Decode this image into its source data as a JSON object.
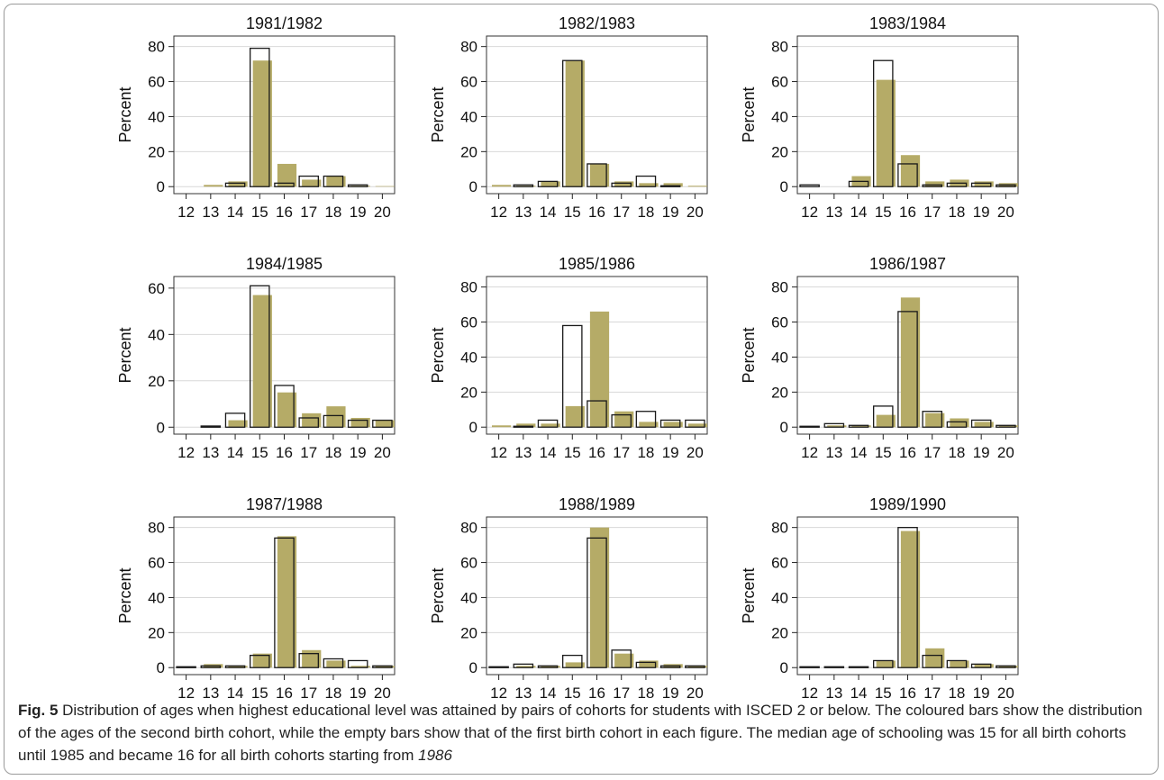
{
  "colors": {
    "second_cohort_fill": "#b5ab67",
    "first_cohort_outline": "#1a1a1a",
    "grid": "#d8d8d8",
    "frame": "#9a9a9a"
  },
  "chart_data": [
    {
      "type": "bar",
      "title": "1981/1982",
      "ylabel": "Percent",
      "categories": [
        "12",
        "13",
        "14",
        "15",
        "16",
        "17",
        "18",
        "19",
        "20"
      ],
      "yticks": [
        0,
        20,
        40,
        60,
        80
      ],
      "ylim": [
        -4,
        86
      ],
      "series": [
        {
          "values": [
            0,
            1,
            3,
            72,
            13,
            4,
            6,
            0.5,
            0.3
          ]
        },
        {
          "values": [
            0,
            0,
            2,
            79,
            2,
            6,
            6,
            1,
            0
          ]
        }
      ]
    },
    {
      "type": "bar",
      "title": "1982/1983",
      "ylabel": "Percent",
      "categories": [
        "12",
        "13",
        "14",
        "15",
        "16",
        "17",
        "18",
        "19",
        "20"
      ],
      "yticks": [
        0,
        20,
        40,
        60,
        80
      ],
      "ylim": [
        -4,
        86
      ],
      "series": [
        {
          "values": [
            1,
            0.5,
            3,
            72,
            13,
            3,
            2,
            2,
            0.5
          ]
        },
        {
          "values": [
            0,
            1,
            3,
            72,
            13,
            2,
            6,
            0.5,
            0
          ]
        }
      ]
    },
    {
      "type": "bar",
      "title": "1983/1984",
      "ylabel": "Percent",
      "categories": [
        "12",
        "13",
        "14",
        "15",
        "16",
        "17",
        "18",
        "19",
        "20"
      ],
      "yticks": [
        0,
        20,
        40,
        60,
        80
      ],
      "ylim": [
        -4,
        86
      ],
      "series": [
        {
          "values": [
            0,
            0,
            6,
            61,
            18,
            3,
            4,
            3,
            2
          ]
        },
        {
          "values": [
            1,
            0,
            3,
            72,
            13,
            1,
            2,
            2,
            1
          ]
        }
      ]
    },
    {
      "type": "bar",
      "title": "1984/1985",
      "ylabel": "Percent",
      "categories": [
        "12",
        "13",
        "14",
        "15",
        "16",
        "17",
        "18",
        "19",
        "20"
      ],
      "yticks": [
        0,
        20,
        40,
        60
      ],
      "ylim": [
        -3,
        65
      ],
      "series": [
        {
          "values": [
            0,
            0,
            3,
            57,
            15,
            6,
            9,
            4,
            3
          ]
        },
        {
          "values": [
            0,
            0.5,
            6,
            61,
            18,
            4,
            5,
            3,
            3
          ]
        }
      ]
    },
    {
      "type": "bar",
      "title": "1985/1986",
      "ylabel": "Percent",
      "categories": [
        "12",
        "13",
        "14",
        "15",
        "16",
        "17",
        "18",
        "19",
        "20"
      ],
      "yticks": [
        0,
        20,
        40,
        60,
        80
      ],
      "ylim": [
        -4,
        86
      ],
      "series": [
        {
          "values": [
            1,
            2,
            2,
            12,
            66,
            9,
            3,
            3,
            2
          ]
        },
        {
          "values": [
            0,
            0.5,
            4,
            58,
            15,
            7,
            9,
            4,
            4
          ]
        }
      ]
    },
    {
      "type": "bar",
      "title": "1986/1987",
      "ylabel": "Percent",
      "categories": [
        "12",
        "13",
        "14",
        "15",
        "16",
        "17",
        "18",
        "19",
        "20"
      ],
      "yticks": [
        0,
        20,
        40,
        60,
        80
      ],
      "ylim": [
        -4,
        86
      ],
      "series": [
        {
          "values": [
            0,
            1,
            1,
            7,
            74,
            8,
            5,
            3,
            1
          ]
        },
        {
          "values": [
            0.5,
            2,
            1,
            12,
            66,
            9,
            3,
            4,
            1
          ]
        }
      ]
    },
    {
      "type": "bar",
      "title": "1987/1988",
      "ylabel": "Percent",
      "categories": [
        "12",
        "13",
        "14",
        "15",
        "16",
        "17",
        "18",
        "19",
        "20"
      ],
      "yticks": [
        0,
        20,
        40,
        60,
        80
      ],
      "ylim": [
        -4,
        86
      ],
      "series": [
        {
          "values": [
            0,
            2,
            1,
            8,
            75,
            10,
            4,
            1,
            1
          ]
        },
        {
          "values": [
            0.5,
            1,
            1,
            7,
            74,
            8,
            5,
            4,
            1
          ]
        }
      ]
    },
    {
      "type": "bar",
      "title": "1988/1989",
      "ylabel": "Percent",
      "categories": [
        "12",
        "13",
        "14",
        "15",
        "16",
        "17",
        "18",
        "19",
        "20"
      ],
      "yticks": [
        0,
        20,
        40,
        60,
        80
      ],
      "ylim": [
        -4,
        86
      ],
      "series": [
        {
          "values": [
            0,
            1,
            1,
            3,
            80,
            8,
            4,
            2,
            1
          ]
        },
        {
          "values": [
            0.5,
            2,
            1,
            7,
            74,
            10,
            3,
            1,
            1
          ]
        }
      ]
    },
    {
      "type": "bar",
      "title": "1989/1990",
      "ylabel": "Percent",
      "categories": [
        "12",
        "13",
        "14",
        "15",
        "16",
        "17",
        "18",
        "19",
        "20"
      ],
      "yticks": [
        0,
        20,
        40,
        60,
        80
      ],
      "ylim": [
        -4,
        86
      ],
      "series": [
        {
          "values": [
            0,
            0,
            0,
            4,
            78,
            11,
            4,
            2,
            1
          ]
        },
        {
          "values": [
            0.5,
            0.5,
            0.5,
            4,
            80,
            7,
            4,
            2,
            1
          ]
        }
      ]
    }
  ],
  "caption": {
    "label": "Fig. 5",
    "text": "  Distribution of ages when highest educational level was attained by pairs of cohorts for students with ISCED 2 or below. The coloured bars show the distribution of the ages of the second birth cohort, while the empty bars show that of the first birth cohort in each figure. The median age of schooling was 15 for all birth cohorts until 1985 and became 16 for all birth cohorts starting from ",
    "emphasis": "1986"
  }
}
